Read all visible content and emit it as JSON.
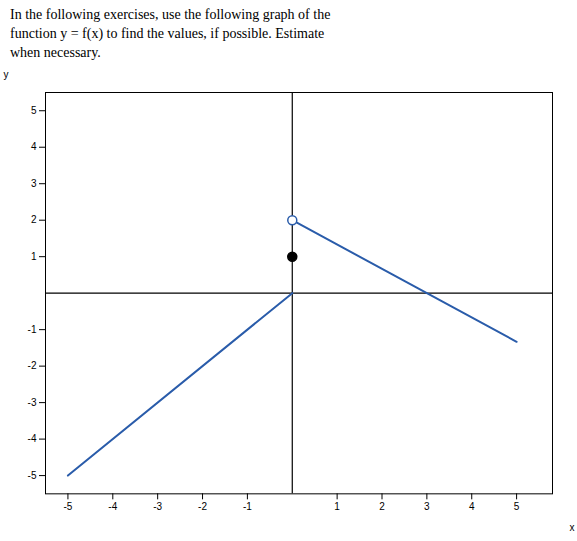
{
  "chart_data": {
    "type": "line",
    "title": "In the following exercises, use the following graph of the\nfunction y = f(x) to find the values, if possible. Estimate\nwhen necessary.",
    "x_label": "x",
    "y_label": "y",
    "xlim": [
      -5.5,
      5.8
    ],
    "ylim": [
      -5.5,
      5.5
    ],
    "xticks": [
      -5,
      -4,
      -3,
      -2,
      -1,
      1,
      2,
      3,
      4,
      5
    ],
    "yticks": [
      -5,
      -4,
      -3,
      -2,
      -1,
      1,
      2,
      3,
      4,
      5
    ],
    "grid": false,
    "series": [
      {
        "type": "line",
        "color": "#2a5caa",
        "x": [
          -5,
          0
        ],
        "values": [
          -5,
          0
        ]
      },
      {
        "type": "line",
        "color": "#2a5caa",
        "x": [
          0,
          5
        ],
        "values": [
          2,
          -1.333
        ]
      },
      {
        "type": "scatter",
        "marker": "open_circle",
        "color": "#2a5caa",
        "x": [
          0
        ],
        "values": [
          2
        ]
      },
      {
        "type": "scatter",
        "marker": "circle",
        "color": "black",
        "x": [
          0
        ],
        "values": [
          1
        ]
      }
    ]
  }
}
